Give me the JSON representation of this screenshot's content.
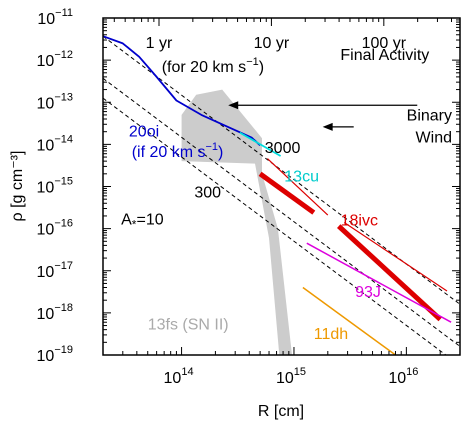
{
  "chart_data": {
    "type": "line",
    "xlabel": "R [cm]",
    "ylabel": "ρ [g cm⁻³]",
    "x_scale": "log",
    "y_scale": "log",
    "xlim": [
      20000000000000.0,
      3e+16
    ],
    "ylim": [
      1e-19,
      1e-11
    ],
    "x_ticks": [
      {
        "value": 100000000000000.0,
        "base": "10",
        "exp": "14"
      },
      {
        "value": 1000000000000000.0,
        "base": "10",
        "exp": "15"
      },
      {
        "value": 1e+16,
        "base": "10",
        "exp": "16"
      }
    ],
    "y_ticks": [
      {
        "value": 1e-11,
        "base": "10",
        "exp": "−11"
      },
      {
        "value": 1e-12,
        "base": "10",
        "exp": "−12"
      },
      {
        "value": 1e-13,
        "base": "10",
        "exp": "−13"
      },
      {
        "value": 1e-14,
        "base": "10",
        "exp": "−14"
      },
      {
        "value": 1e-15,
        "base": "10",
        "exp": "−15"
      },
      {
        "value": 1e-16,
        "base": "10",
        "exp": "−16"
      },
      {
        "value": 1e-17,
        "base": "10",
        "exp": "−17"
      },
      {
        "value": 1e-18,
        "base": "10",
        "exp": "−18"
      },
      {
        "value": 1e-19,
        "base": "10",
        "exp": "−19"
      }
    ],
    "top_time_ticks": [
      {
        "label": "1 yr",
        "x": 63000000000000.0
      },
      {
        "label": "10 yr",
        "x": 630000000000000.0
      },
      {
        "label": "100 yr",
        "x": 6300000000000000.0
      }
    ],
    "top_time_note": "(for 20 km s⁻¹)",
    "wind_lines": [
      {
        "label": "A*=10",
        "points": [
          [
            20000000000000.0,
            1.25e-13
          ],
          [
            3e+16,
            5.6e-20
          ]
        ]
      },
      {
        "label": "300",
        "points": [
          [
            20000000000000.0,
            3.7e-13
          ],
          [
            3e+16,
            1.6e-19
          ]
        ]
      },
      {
        "label": "3000",
        "points": [
          [
            20000000000000.0,
            3.7e-12
          ],
          [
            3e+16,
            1.6e-18
          ]
        ]
      }
    ],
    "wind_labels": [
      {
        "text": "A",
        "sub": "*",
        "suffix": "=10",
        "x": 29000000000000.0,
        "y": 1.25e-16
      },
      {
        "text": "300",
        "x": 130000000000000.0,
        "y": 5.5e-16
      },
      {
        "text": "3000",
        "x": 550000000000000.0,
        "y": 6.3e-15
      }
    ],
    "shaded_region": {
      "label": "13fs (SN II)",
      "color": "#cccccc",
      "points": [
        [
          100000000000000.0,
          5e-14
        ],
        [
          100000000000000.0,
          4e-15
        ],
        [
          450000000000000.0,
          3.5e-15
        ],
        [
          600000000000000.0,
          6e-17
        ],
        [
          740000000000000.0,
          1e-19
        ],
        [
          960000000000000.0,
          1e-19
        ],
        [
          720000000000000.0,
          1e-16
        ],
        [
          520000000000000.0,
          2e-15
        ],
        [
          520000000000000.0,
          1.4e-14
        ],
        [
          230000000000000.0,
          2e-13
        ],
        [
          135000000000000.0,
          1.5e-13
        ]
      ]
    },
    "series": [
      {
        "name": "20oi (if 20 km s⁻¹)",
        "color": "#0000cc",
        "width": 1.8,
        "points": [
          [
            20000000000000.0,
            3.7e-12
          ],
          [
            30000000000000.0,
            2.5e-12
          ],
          [
            42000000000000.0,
            1.2e-12
          ],
          [
            60000000000000.0,
            4e-13
          ],
          [
            90000000000000.0,
            1.1e-13
          ],
          [
            150000000000000.0,
            5e-14
          ],
          [
            250000000000000.0,
            2.7e-14
          ],
          [
            420000000000000.0,
            1.45e-14
          ],
          [
            500000000000000.0,
            9.5e-15
          ]
        ]
      },
      {
        "name": "13cu",
        "color": "#00dddd",
        "width": 1.8,
        "points": [
          [
            330000000000000.0,
            1.9e-14
          ],
          [
            760000000000000.0,
            5.3e-15
          ]
        ]
      },
      {
        "name": "18ivc thin",
        "color": "#dd0000",
        "width": 1.2,
        "points": [
          [
            580000000000000.0,
            4.6e-15
          ],
          [
            2000000000000000.0,
            2.1e-16
          ]
        ]
      },
      {
        "name": "18ivc thin 2",
        "color": "#dd0000",
        "width": 1.2,
        "points": [
          [
            2800000000000000.0,
            1.4e-16
          ],
          [
            2.3e+16,
            3.3e-18
          ]
        ]
      },
      {
        "name": "18ivc",
        "color": "#dd0000",
        "width": 5,
        "points": [
          [
            500000000000000.0,
            2e-15
          ],
          [
            1500000000000000.0,
            2.4e-16
          ]
        ]
      },
      {
        "name": "18ivc thick 2",
        "color": "#dd0000",
        "width": 5,
        "points": [
          [
            2500000000000000.0,
            1.15e-16
          ],
          [
            2e+16,
            7e-19
          ]
        ]
      },
      {
        "name": "93J",
        "color": "#dd00dd",
        "width": 1.5,
        "points": [
          [
            1300000000000000.0,
            4.5e-17
          ],
          [
            2.5e+16,
            6e-19
          ]
        ]
      },
      {
        "name": "11dh",
        "color": "#ee9900",
        "width": 1.5,
        "points": [
          [
            1200000000000000.0,
            4e-18
          ],
          [
            8000000000000000.0,
            1e-19
          ]
        ]
      }
    ],
    "labels": [
      {
        "text": "20oi",
        "color": "#0000cc",
        "x": 34000000000000.0,
        "y": 1.55e-14,
        "anchor": "start"
      },
      {
        "text": "(if 20 km s",
        "sup": "−1",
        "suffix": ")",
        "color": "#0000cc",
        "x": 36000000000000.0,
        "y": 5e-15,
        "anchor": "start"
      },
      {
        "text": "13cu",
        "color": "#00cccc",
        "x": 820000000000000.0,
        "y": 1.3e-15,
        "anchor": "start"
      },
      {
        "text": "18ivc",
        "color": "#dd0000",
        "x": 2600000000000000.0,
        "y": 1.2e-16,
        "anchor": "start"
      },
      {
        "text": "93J",
        "color": "#dd00dd",
        "x": 3500000000000000.0,
        "y": 2.4e-18,
        "anchor": "start"
      },
      {
        "text": "11dh",
        "color": "#ee9900",
        "x": 1500000000000000.0,
        "y": 2.4e-19,
        "anchor": "start"
      },
      {
        "text": "13fs (SN II)",
        "color": "#aaaaaa",
        "x": 50000000000000.0,
        "y": 4e-19,
        "anchor": "start"
      }
    ],
    "annotations": [
      {
        "name": "final-activity",
        "text": "Final Activity",
        "text_x": 1.6e+16,
        "text_y": 4.2e-14,
        "arrow_from": [
          1.25e+16,
          8.5e-14
        ],
        "arrow_to": [
          260000000000000.0,
          8.5e-14
        ]
      },
      {
        "name": "binary-wind",
        "lines": [
          "Binary",
          "Wind"
        ],
        "text_x": 3e+16,
        "text_y": 2.4e-14,
        "arrow_from": [
          3400000000000000.0,
          2.6e-14
        ],
        "arrow_to": [
          1800000000000000.0,
          2.6e-14
        ]
      }
    ],
    "grid": false,
    "legend": "none (inline labels)"
  }
}
